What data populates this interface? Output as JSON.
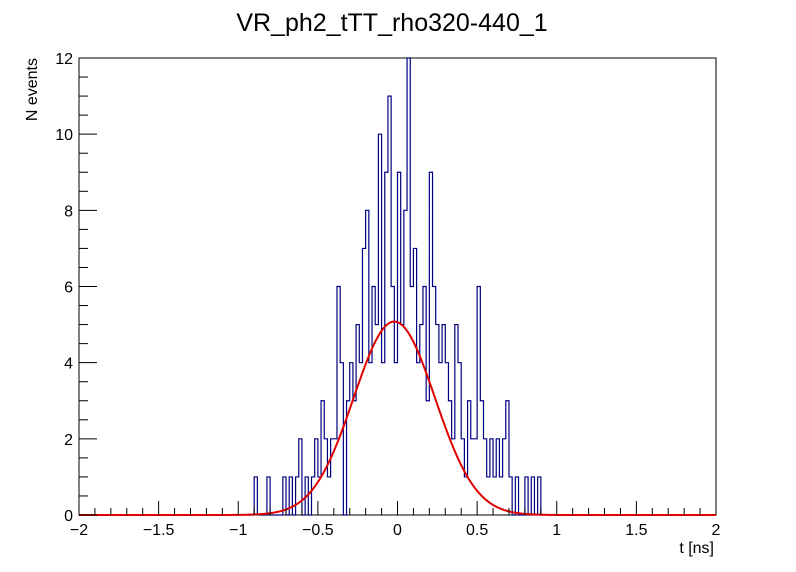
{
  "chart_data": {
    "type": "histogram",
    "title": "VR_ph2_tTT_rho320-440_1",
    "xlabel": "t [ns]",
    "ylabel": "N events",
    "xlim": [
      -2,
      2
    ],
    "ylim": [
      0,
      12
    ],
    "x_ticks": [
      -2,
      -1.5,
      -1,
      -0.5,
      0,
      0.5,
      1,
      1.5,
      2
    ],
    "x_tick_labels": [
      "−2",
      "−1.5",
      "−1",
      "−0.5",
      "0",
      "0.5",
      "1",
      "1.5",
      "2"
    ],
    "y_ticks": [
      0,
      2,
      4,
      6,
      8,
      10,
      12
    ],
    "y_tick_labels": [
      "0",
      "2",
      "4",
      "6",
      "8",
      "10",
      "12"
    ],
    "grid": false,
    "legend": "none",
    "series": [
      {
        "kind": "step-histogram",
        "color": "#000080",
        "bin_width": 0.02,
        "bins": [
          {
            "x0": -0.9,
            "count": 1
          },
          {
            "x0": -0.82,
            "count": 1
          },
          {
            "x0": -0.8,
            "count": 0
          },
          {
            "x0": -0.72,
            "count": 1
          },
          {
            "x0": -0.68,
            "count": 1
          },
          {
            "x0": -0.64,
            "count": 1
          },
          {
            "x0": -0.62,
            "count": 2
          },
          {
            "x0": -0.6,
            "count": 0
          },
          {
            "x0": -0.58,
            "count": 1
          },
          {
            "x0": -0.56,
            "count": 0
          },
          {
            "x0": -0.54,
            "count": 1
          },
          {
            "x0": -0.52,
            "count": 2
          },
          {
            "x0": -0.5,
            "count": 1
          },
          {
            "x0": -0.48,
            "count": 3
          },
          {
            "x0": -0.46,
            "count": 2
          },
          {
            "x0": -0.44,
            "count": 1
          },
          {
            "x0": -0.42,
            "count": 2
          },
          {
            "x0": -0.4,
            "count": 2
          },
          {
            "x0": -0.38,
            "count": 6
          },
          {
            "x0": -0.36,
            "count": 4
          },
          {
            "x0": -0.34,
            "count": 0
          },
          {
            "x0": -0.32,
            "count": 3
          },
          {
            "x0": -0.3,
            "count": 4
          },
          {
            "x0": -0.28,
            "count": 3
          },
          {
            "x0": -0.26,
            "count": 5
          },
          {
            "x0": -0.24,
            "count": 4
          },
          {
            "x0": -0.22,
            "count": 7
          },
          {
            "x0": -0.2,
            "count": 8
          },
          {
            "x0": -0.18,
            "count": 4
          },
          {
            "x0": -0.16,
            "count": 6
          },
          {
            "x0": -0.14,
            "count": 5
          },
          {
            "x0": -0.12,
            "count": 10
          },
          {
            "x0": -0.1,
            "count": 4
          },
          {
            "x0": -0.08,
            "count": 9
          },
          {
            "x0": -0.06,
            "count": 11
          },
          {
            "x0": -0.04,
            "count": 6
          },
          {
            "x0": -0.02,
            "count": 4
          },
          {
            "x0": 0.0,
            "count": 9
          },
          {
            "x0": 0.02,
            "count": 5
          },
          {
            "x0": 0.04,
            "count": 8
          },
          {
            "x0": 0.06,
            "count": 12
          },
          {
            "x0": 0.08,
            "count": 6
          },
          {
            "x0": 0.1,
            "count": 7
          },
          {
            "x0": 0.12,
            "count": 4
          },
          {
            "x0": 0.14,
            "count": 5
          },
          {
            "x0": 0.16,
            "count": 6
          },
          {
            "x0": 0.18,
            "count": 3
          },
          {
            "x0": 0.2,
            "count": 9
          },
          {
            "x0": 0.22,
            "count": 6
          },
          {
            "x0": 0.24,
            "count": 5
          },
          {
            "x0": 0.26,
            "count": 4
          },
          {
            "x0": 0.28,
            "count": 5
          },
          {
            "x0": 0.3,
            "count": 4
          },
          {
            "x0": 0.32,
            "count": 3
          },
          {
            "x0": 0.34,
            "count": 2
          },
          {
            "x0": 0.36,
            "count": 5
          },
          {
            "x0": 0.38,
            "count": 4
          },
          {
            "x0": 0.4,
            "count": 2
          },
          {
            "x0": 0.42,
            "count": 1
          },
          {
            "x0": 0.44,
            "count": 3
          },
          {
            "x0": 0.46,
            "count": 2
          },
          {
            "x0": 0.48,
            "count": 2
          },
          {
            "x0": 0.5,
            "count": 6
          },
          {
            "x0": 0.52,
            "count": 3
          },
          {
            "x0": 0.54,
            "count": 2
          },
          {
            "x0": 0.56,
            "count": 1
          },
          {
            "x0": 0.58,
            "count": 2
          },
          {
            "x0": 0.6,
            "count": 1
          },
          {
            "x0": 0.62,
            "count": 2
          },
          {
            "x0": 0.64,
            "count": 1
          },
          {
            "x0": 0.66,
            "count": 2
          },
          {
            "x0": 0.68,
            "count": 3
          },
          {
            "x0": 0.7,
            "count": 1
          },
          {
            "x0": 0.72,
            "count": 0
          },
          {
            "x0": 0.74,
            "count": 1
          },
          {
            "x0": 0.76,
            "count": 0
          },
          {
            "x0": 0.8,
            "count": 1
          },
          {
            "x0": 0.84,
            "count": 1
          },
          {
            "x0": 0.88,
            "count": 1
          }
        ]
      },
      {
        "kind": "gaussian-fit",
        "color": "#e00000",
        "amplitude": 5.08,
        "mean": -0.02,
        "sigma": 0.255
      }
    ]
  }
}
